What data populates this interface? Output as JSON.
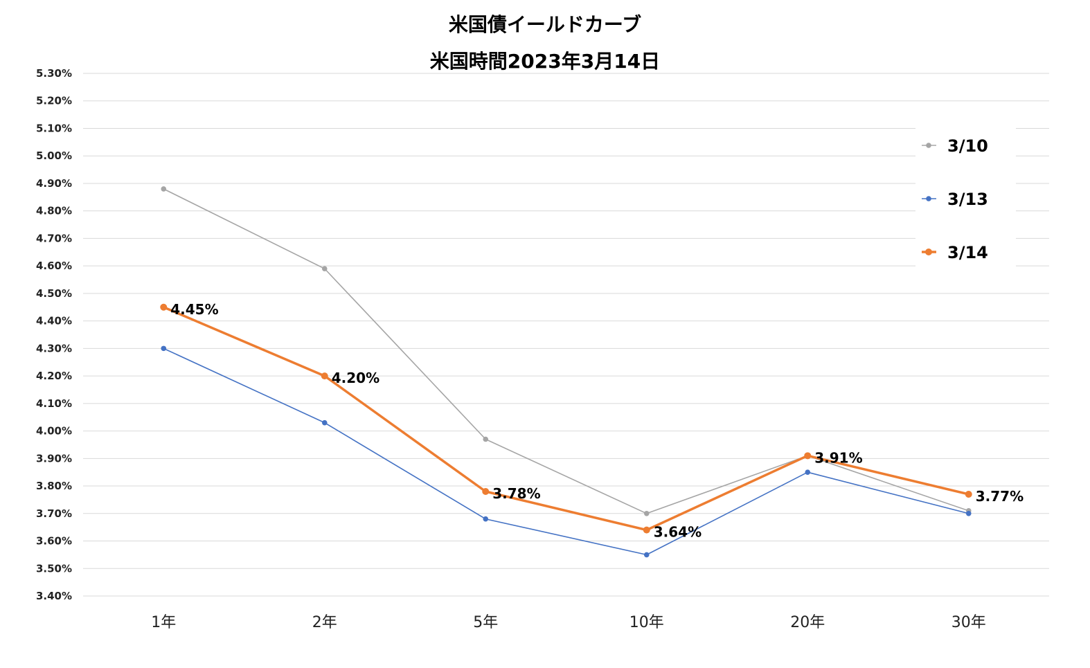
{
  "chart_data": {
    "type": "line",
    "title_lines": [
      "米国債イールドカーブ",
      "米国時間2023年3月14日"
    ],
    "categories": [
      "1年",
      "2年",
      "5年",
      "10年",
      "20年",
      "30年"
    ],
    "ylim": [
      3.4,
      5.3
    ],
    "ytick_labels": [
      "5.30%",
      "5.20%",
      "5.10%",
      "5.00%",
      "4.90%",
      "4.80%",
      "4.70%",
      "4.60%",
      "4.50%",
      "4.40%",
      "4.30%",
      "4.20%",
      "4.10%",
      "4.00%",
      "3.90%",
      "3.80%",
      "3.70%",
      "3.60%",
      "3.50%",
      "3.40%"
    ],
    "grid": true,
    "legend_position": "top-right",
    "series": [
      {
        "name": "3/10",
        "color": "#a5a5a5",
        "values": [
          4.88,
          4.59,
          3.97,
          3.7,
          3.91,
          3.71
        ]
      },
      {
        "name": "3/13",
        "color": "#4472c4",
        "values": [
          4.3,
          4.03,
          3.68,
          3.55,
          3.85,
          3.7
        ]
      },
      {
        "name": "3/14",
        "color": "#ed7d31",
        "values": [
          4.45,
          4.2,
          3.78,
          3.64,
          3.91,
          3.77
        ],
        "data_labels": [
          "4.45%",
          "4.20%",
          "3.78%",
          "3.64%",
          "3.91%",
          "3.77%"
        ]
      }
    ]
  }
}
